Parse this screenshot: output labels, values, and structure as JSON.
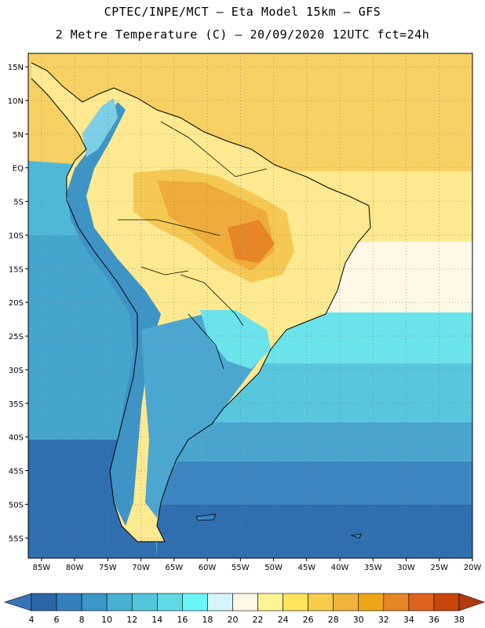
{
  "header": {
    "line1": "CPTEC/INPE/MCT –  Eta Model 15km – GFS",
    "line2": "2 Metre Temperature (C) – 20/09/2020 12UTC fct=24h"
  },
  "map": {
    "lon_range": [
      -87,
      -20
    ],
    "lat_range": [
      -58,
      17
    ],
    "lon_ticks": [
      "85W",
      "80W",
      "75W",
      "70W",
      "65W",
      "60W",
      "55W",
      "50W",
      "45W",
      "40W",
      "35W",
      "30W",
      "25W",
      "20W"
    ],
    "lat_ticks": [
      "15N",
      "10N",
      "5N",
      "EQ",
      "5S",
      "10S",
      "15S",
      "20S",
      "25S",
      "30S",
      "35S",
      "40S",
      "45S",
      "50S",
      "55S"
    ],
    "grid": true
  },
  "colorbar": {
    "labels": [
      "4",
      "6",
      "8",
      "10",
      "12",
      "14",
      "16",
      "18",
      "20",
      "22",
      "24",
      "26",
      "28",
      "30",
      "32",
      "34",
      "36",
      "38"
    ],
    "colors": [
      "#2b66a8",
      "#3480bd",
      "#3c98c9",
      "#48b1d4",
      "#53c6dc",
      "#5fd9e4",
      "#6af5f7",
      "#d4f6fb",
      "#fff8e6",
      "#fef493",
      "#fde45c",
      "#f6cc4b",
      "#efb43a",
      "#eda518",
      "#e68626",
      "#dc631d",
      "#c8450c"
    ],
    "under_color": "#3575b5",
    "over_color": "#b23a10"
  }
}
